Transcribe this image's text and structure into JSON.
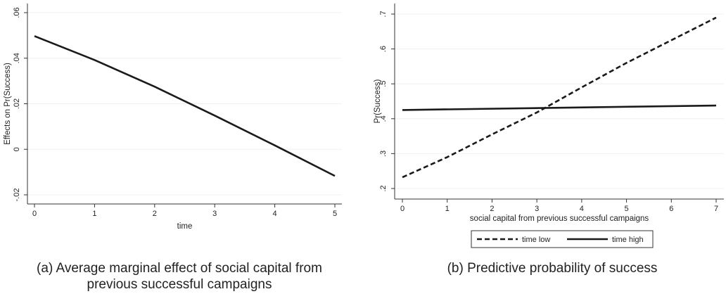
{
  "chart_data": [
    {
      "type": "line",
      "xlabel": "time",
      "ylabel": "Effects on Pr(Success)",
      "xlim": [
        0,
        5
      ],
      "ylim": [
        -0.02,
        0.06
      ],
      "x_ticks": [
        0,
        1,
        2,
        3,
        4,
        5
      ],
      "x_tick_labels": [
        "0",
        "1",
        "2",
        "3",
        "4",
        "5"
      ],
      "y_ticks": [
        -0.02,
        0,
        0.02,
        0.04,
        0.06
      ],
      "y_tick_labels": [
        "-.02",
        "0",
        ".02",
        ".04",
        ".06"
      ],
      "grid": true,
      "series": [
        {
          "x": [
            0,
            1,
            2,
            3,
            4,
            5
          ],
          "y": [
            0.0497,
            0.0392,
            0.0275,
            0.0148,
            0.0017,
            -0.0117
          ],
          "color": "#1a1a1a",
          "style": "solid"
        }
      ],
      "caption": "(a) Average marginal effect of social capital from previous successful campaigns"
    },
    {
      "type": "line",
      "xlabel": "social capital from previous successful campaigns",
      "ylabel": "Pr(Success)",
      "xlim": [
        0,
        7
      ],
      "ylim": [
        0.2,
        0.7
      ],
      "x_ticks": [
        0,
        1,
        2,
        3,
        4,
        5,
        6,
        7
      ],
      "x_tick_labels": [
        "0",
        "1",
        "2",
        "3",
        "4",
        "5",
        "6",
        "7"
      ],
      "y_ticks": [
        0.2,
        0.3,
        0.4,
        0.5,
        0.6,
        0.7
      ],
      "y_tick_labels": [
        ".2",
        ".3",
        ".4",
        ".5",
        ".6",
        ".7"
      ],
      "grid": true,
      "legend": "bottom",
      "series": [
        {
          "name": "time low",
          "x": [
            0,
            1,
            2,
            3,
            4,
            5,
            6,
            7
          ],
          "y": [
            0.232,
            0.29,
            0.355,
            0.418,
            0.49,
            0.56,
            0.625,
            0.69
          ],
          "color": "#1a1a1a",
          "style": "dashed"
        },
        {
          "name": "time high",
          "x": [
            0,
            7
          ],
          "y": [
            0.425,
            0.438
          ],
          "color": "#1a1a1a",
          "style": "solid"
        }
      ],
      "caption": "(b) Predictive probability of success"
    }
  ]
}
